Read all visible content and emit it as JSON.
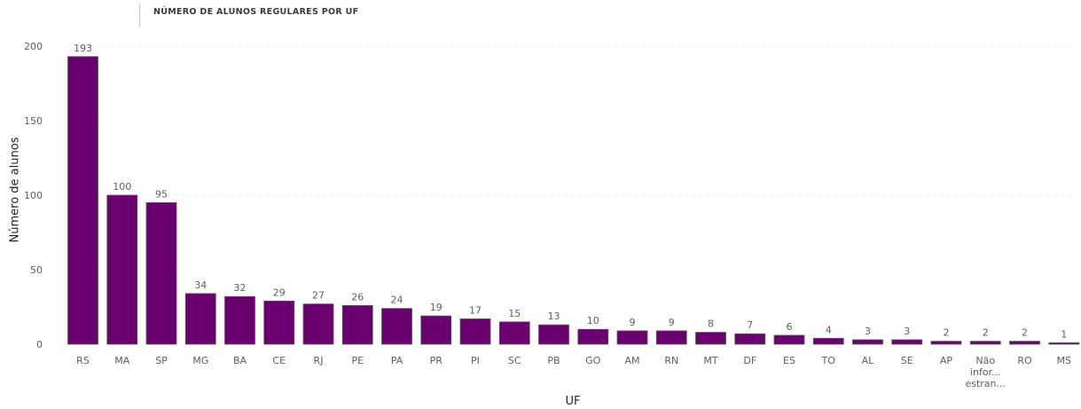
{
  "chart_data": {
    "type": "bar",
    "title": "NÚMERO DE ALUNOS REGULARES POR UF",
    "xlabel": "UF",
    "ylabel": "Número de alunos",
    "ylim": [
      0,
      200
    ],
    "yticks": [
      0,
      50,
      100,
      150,
      200
    ],
    "grid": true,
    "bar_color": "#6a006f",
    "categories": [
      "RS",
      "MA",
      "SP",
      "MG",
      "BA",
      "CE",
      "RJ",
      "PE",
      "PA",
      "PR",
      "PI",
      "SC",
      "PB",
      "GO",
      "AM",
      "RN",
      "MT",
      "DF",
      "ES",
      "TO",
      "AL",
      "SE",
      "AP",
      "Não infor... estran...",
      "RO",
      "MS"
    ],
    "values": [
      193,
      100,
      95,
      34,
      32,
      29,
      27,
      26,
      24,
      19,
      17,
      15,
      13,
      10,
      9,
      9,
      8,
      7,
      6,
      4,
      3,
      3,
      2,
      2,
      2,
      1
    ]
  }
}
